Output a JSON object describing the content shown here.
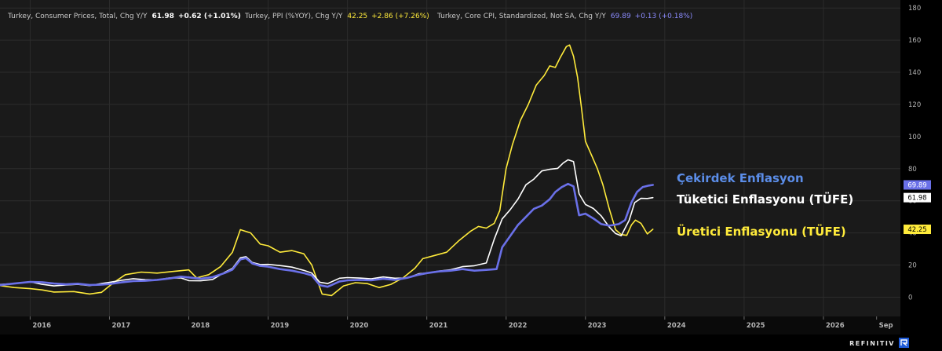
{
  "header": {
    "series": [
      {
        "name": "Turkey, Consumer Prices, Total, Chg Y/Y",
        "value": "61.98",
        "change": "+0.62 (+1.01%)",
        "color": "#ffffff"
      },
      {
        "name": "Turkey, PPI (%YOY), Chg Y/Y",
        "value": "42.25",
        "change": "+2.86 (+7.26%)",
        "color": "#ffeb3b"
      },
      {
        "name": "Turkey, Core CPI, Standardized, Not SA, Chg Y/Y",
        "value": "69.89",
        "change": "+0.13 (+0.18%)",
        "color": "#6d72ea"
      }
    ]
  },
  "annotations": {
    "core": {
      "text": "Çekirdek Enflasyon",
      "color": "#5b8de8"
    },
    "cpi": {
      "text": "Tüketici Enflasyonu (TÜFE)",
      "color": "#ffffff"
    },
    "ppi": {
      "text": "Üretici Enflasyonu (TÜFE)",
      "color": "#ffeb3b"
    }
  },
  "badges": [
    {
      "series": "core",
      "text": "69.89",
      "bg": "#6a70e8",
      "fg": "#ffffff"
    },
    {
      "series": "cpi",
      "text": "61.98",
      "bg": "#ffffff",
      "fg": "#000000"
    },
    {
      "series": "ppi",
      "text": "42.25",
      "bg": "#ffeb3b",
      "fg": "#000000"
    }
  ],
  "brand": "REFINITIV",
  "chart_data": {
    "type": "line",
    "ylim": [
      -12,
      185
    ],
    "yticks": [
      0,
      20,
      40,
      60,
      80,
      100,
      120,
      140,
      160,
      180
    ],
    "xlim": [
      2015.62,
      2026.97
    ],
    "xticks": [
      {
        "label": "2016",
        "x": 2016.0
      },
      {
        "label": "2017",
        "x": 2017.0
      },
      {
        "label": "2018",
        "x": 2018.0
      },
      {
        "label": "2019",
        "x": 2019.0
      },
      {
        "label": "2020",
        "x": 2020.0
      },
      {
        "label": "2021",
        "x": 2021.0
      },
      {
        "label": "2022",
        "x": 2022.0
      },
      {
        "label": "2023",
        "x": 2023.0
      },
      {
        "label": "2024",
        "x": 2024.0
      },
      {
        "label": "2025",
        "x": 2025.0
      },
      {
        "label": "2026",
        "x": 2026.0
      },
      {
        "label": "Sep",
        "x": 2026.67
      }
    ],
    "series": [
      {
        "key": "ppi",
        "name": "Turkey, PPI (%YOY), Chg Y/Y",
        "color": "#ffeb3b",
        "width": 1.6,
        "points": [
          [
            2015.62,
            7.2
          ],
          [
            2015.8,
            6.0
          ],
          [
            2016.0,
            5.3
          ],
          [
            2016.15,
            4.5
          ],
          [
            2016.3,
            3.2
          ],
          [
            2016.55,
            3.5
          ],
          [
            2016.75,
            2.0
          ],
          [
            2016.9,
            3.0
          ],
          [
            2017.0,
            7.0
          ],
          [
            2017.08,
            10.0
          ],
          [
            2017.2,
            14.0
          ],
          [
            2017.4,
            15.6
          ],
          [
            2017.6,
            15.0
          ],
          [
            2017.8,
            16.0
          ],
          [
            2018.0,
            17.0
          ],
          [
            2018.1,
            12.0
          ],
          [
            2018.25,
            14.0
          ],
          [
            2018.4,
            19.0
          ],
          [
            2018.55,
            28.0
          ],
          [
            2018.65,
            42.0
          ],
          [
            2018.78,
            40.0
          ],
          [
            2018.9,
            33.0
          ],
          [
            2019.0,
            32.0
          ],
          [
            2019.15,
            28.0
          ],
          [
            2019.3,
            29.0
          ],
          [
            2019.45,
            27.0
          ],
          [
            2019.55,
            20.0
          ],
          [
            2019.68,
            2.0
          ],
          [
            2019.8,
            1.0
          ],
          [
            2019.95,
            7.0
          ],
          [
            2020.1,
            9.0
          ],
          [
            2020.25,
            8.5
          ],
          [
            2020.4,
            6.0
          ],
          [
            2020.55,
            8.0
          ],
          [
            2020.7,
            12.0
          ],
          [
            2020.85,
            18.0
          ],
          [
            2020.95,
            24.0
          ],
          [
            2021.1,
            26.0
          ],
          [
            2021.25,
            28.0
          ],
          [
            2021.4,
            35.0
          ],
          [
            2021.55,
            41.0
          ],
          [
            2021.65,
            44.0
          ],
          [
            2021.75,
            43.0
          ],
          [
            2021.85,
            46.0
          ],
          [
            2021.92,
            54.0
          ],
          [
            2022.0,
            80.0
          ],
          [
            2022.08,
            95.0
          ],
          [
            2022.18,
            110.0
          ],
          [
            2022.28,
            120.0
          ],
          [
            2022.38,
            132.0
          ],
          [
            2022.48,
            138.0
          ],
          [
            2022.55,
            144.0
          ],
          [
            2022.62,
            143.0
          ],
          [
            2022.68,
            149.0
          ],
          [
            2022.76,
            156.0
          ],
          [
            2022.8,
            157.0
          ],
          [
            2022.85,
            150.0
          ],
          [
            2022.9,
            137.0
          ],
          [
            2022.95,
            118.0
          ],
          [
            2023.0,
            97.0
          ],
          [
            2023.08,
            88.0
          ],
          [
            2023.15,
            80.0
          ],
          [
            2023.22,
            70.0
          ],
          [
            2023.3,
            55.0
          ],
          [
            2023.38,
            42.0
          ],
          [
            2023.45,
            39.0
          ],
          [
            2023.52,
            38.5
          ],
          [
            2023.58,
            45.0
          ],
          [
            2023.63,
            48.0
          ],
          [
            2023.7,
            46.0
          ],
          [
            2023.78,
            39.4
          ],
          [
            2023.85,
            42.25
          ]
        ]
      },
      {
        "key": "cpi",
        "name": "Turkey, Consumer Prices, Total, Chg Y/Y",
        "color": "#ffffff",
        "width": 1.6,
        "points": [
          [
            2015.62,
            7.9
          ],
          [
            2015.8,
            8.5
          ],
          [
            2016.0,
            9.6
          ],
          [
            2016.15,
            8.0
          ],
          [
            2016.3,
            7.0
          ],
          [
            2016.45,
            7.6
          ],
          [
            2016.6,
            8.0
          ],
          [
            2016.75,
            7.2
          ],
          [
            2016.9,
            8.5
          ],
          [
            2017.0,
            9.2
          ],
          [
            2017.15,
            10.5
          ],
          [
            2017.3,
            11.5
          ],
          [
            2017.45,
            10.9
          ],
          [
            2017.6,
            10.7
          ],
          [
            2017.75,
            11.9
          ],
          [
            2017.9,
            12.0
          ],
          [
            2018.0,
            10.3
          ],
          [
            2018.15,
            10.2
          ],
          [
            2018.3,
            11.0
          ],
          [
            2018.45,
            15.4
          ],
          [
            2018.55,
            17.9
          ],
          [
            2018.65,
            24.5
          ],
          [
            2018.72,
            25.2
          ],
          [
            2018.8,
            21.6
          ],
          [
            2018.9,
            20.3
          ],
          [
            2019.0,
            20.4
          ],
          [
            2019.15,
            19.7
          ],
          [
            2019.3,
            18.7
          ],
          [
            2019.45,
            16.7
          ],
          [
            2019.55,
            15.0
          ],
          [
            2019.65,
            9.3
          ],
          [
            2019.75,
            8.5
          ],
          [
            2019.9,
            11.8
          ],
          [
            2020.0,
            12.2
          ],
          [
            2020.15,
            11.9
          ],
          [
            2020.3,
            11.4
          ],
          [
            2020.45,
            12.6
          ],
          [
            2020.6,
            11.8
          ],
          [
            2020.75,
            11.9
          ],
          [
            2020.9,
            14.6
          ],
          [
            2021.0,
            15.0
          ],
          [
            2021.15,
            16.2
          ],
          [
            2021.3,
            17.1
          ],
          [
            2021.45,
            19.0
          ],
          [
            2021.6,
            19.6
          ],
          [
            2021.75,
            21.3
          ],
          [
            2021.85,
            36.1
          ],
          [
            2021.95,
            48.7
          ],
          [
            2022.05,
            54.4
          ],
          [
            2022.15,
            61.1
          ],
          [
            2022.25,
            70.0
          ],
          [
            2022.35,
            73.5
          ],
          [
            2022.45,
            78.6
          ],
          [
            2022.55,
            79.6
          ],
          [
            2022.65,
            80.2
          ],
          [
            2022.72,
            83.5
          ],
          [
            2022.78,
            85.5
          ],
          [
            2022.85,
            84.4
          ],
          [
            2022.92,
            64.3
          ],
          [
            2023.0,
            57.7
          ],
          [
            2023.1,
            55.2
          ],
          [
            2023.2,
            50.5
          ],
          [
            2023.3,
            43.7
          ],
          [
            2023.38,
            39.6
          ],
          [
            2023.45,
            38.2
          ],
          [
            2023.55,
            47.8
          ],
          [
            2023.62,
            58.9
          ],
          [
            2023.7,
            61.5
          ],
          [
            2023.78,
            61.4
          ],
          [
            2023.85,
            61.98
          ]
        ]
      },
      {
        "key": "core",
        "name": "Turkey, Core CPI, Standardized, Not SA, Chg Y/Y",
        "color": "#6a70e8",
        "width": 2.6,
        "points": [
          [
            2015.62,
            7.5
          ],
          [
            2015.8,
            8.5
          ],
          [
            2016.0,
            9.5
          ],
          [
            2016.15,
            9.3
          ],
          [
            2016.3,
            8.5
          ],
          [
            2016.45,
            8.0
          ],
          [
            2016.6,
            8.4
          ],
          [
            2016.75,
            7.6
          ],
          [
            2016.9,
            7.8
          ],
          [
            2017.0,
            8.2
          ],
          [
            2017.15,
            9.2
          ],
          [
            2017.3,
            10.0
          ],
          [
            2017.45,
            10.2
          ],
          [
            2017.6,
            10.8
          ],
          [
            2017.75,
            11.6
          ],
          [
            2017.9,
            12.8
          ],
          [
            2018.0,
            12.3
          ],
          [
            2018.15,
            11.5
          ],
          [
            2018.3,
            12.5
          ],
          [
            2018.45,
            15.0
          ],
          [
            2018.55,
            17.2
          ],
          [
            2018.65,
            23.5
          ],
          [
            2018.72,
            24.3
          ],
          [
            2018.8,
            21.0
          ],
          [
            2018.9,
            19.5
          ],
          [
            2019.0,
            19.0
          ],
          [
            2019.15,
            17.5
          ],
          [
            2019.3,
            16.5
          ],
          [
            2019.45,
            15.0
          ],
          [
            2019.55,
            13.5
          ],
          [
            2019.65,
            7.5
          ],
          [
            2019.75,
            6.5
          ],
          [
            2019.9,
            9.8
          ],
          [
            2020.0,
            10.5
          ],
          [
            2020.15,
            10.8
          ],
          [
            2020.3,
            10.5
          ],
          [
            2020.45,
            11.5
          ],
          [
            2020.6,
            10.8
          ],
          [
            2020.75,
            12.0
          ],
          [
            2020.9,
            14.0
          ],
          [
            2021.0,
            15.0
          ],
          [
            2021.15,
            16.0
          ],
          [
            2021.3,
            16.5
          ],
          [
            2021.45,
            17.5
          ],
          [
            2021.6,
            16.5
          ],
          [
            2021.75,
            17.0
          ],
          [
            2021.88,
            17.5
          ],
          [
            2021.95,
            31.0
          ],
          [
            2022.05,
            38.0
          ],
          [
            2022.15,
            45.0
          ],
          [
            2022.25,
            50.0
          ],
          [
            2022.35,
            55.0
          ],
          [
            2022.45,
            57.0
          ],
          [
            2022.55,
            61.0
          ],
          [
            2022.62,
            65.5
          ],
          [
            2022.7,
            68.5
          ],
          [
            2022.78,
            70.5
          ],
          [
            2022.85,
            69.0
          ],
          [
            2022.92,
            51.0
          ],
          [
            2023.0,
            52.0
          ],
          [
            2023.1,
            49.0
          ],
          [
            2023.2,
            45.5
          ],
          [
            2023.3,
            44.5
          ],
          [
            2023.42,
            45.5
          ],
          [
            2023.5,
            48.0
          ],
          [
            2023.58,
            59.0
          ],
          [
            2023.65,
            65.5
          ],
          [
            2023.72,
            68.5
          ],
          [
            2023.8,
            69.5
          ],
          [
            2023.85,
            69.89
          ]
        ]
      }
    ]
  }
}
